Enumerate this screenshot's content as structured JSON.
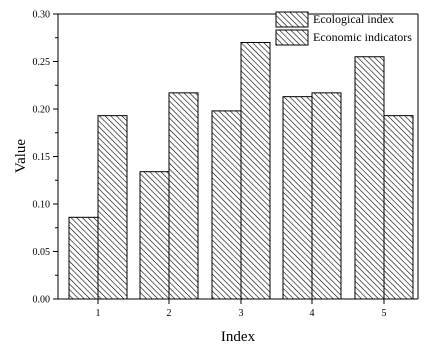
{
  "chart_data": {
    "type": "bar",
    "categories": [
      "1",
      "2",
      "3",
      "4",
      "5"
    ],
    "series": [
      {
        "name": "Ecological index",
        "values": [
          0.086,
          0.134,
          0.198,
          0.213,
          0.255
        ]
      },
      {
        "name": "Economic indicators",
        "values": [
          0.193,
          0.217,
          0.27,
          0.217,
          0.193
        ]
      }
    ],
    "xlabel": "Index",
    "ylabel": "Value",
    "ylim": [
      0,
      0.3
    ],
    "yticks": [
      "0.00",
      "0.05",
      "0.10",
      "0.15",
      "0.20",
      "0.25",
      "0.30"
    ],
    "legend_position": "top-right",
    "grid": false,
    "bar_fill": "diagonal-hatch",
    "colors": {
      "stroke": "#000000",
      "background": "#ffffff"
    }
  }
}
